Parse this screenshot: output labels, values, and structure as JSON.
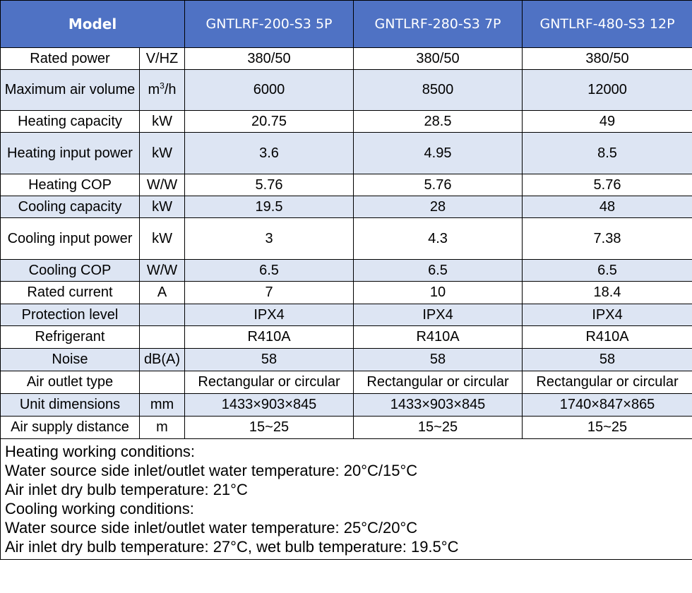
{
  "header": {
    "model_label": "Model",
    "models": [
      "GNTLRF-200-S3  5P",
      "GNTLRF-280-S3  7P",
      "GNTLRF-480-S3  12P"
    ]
  },
  "rows": [
    {
      "label": "Rated power",
      "unit": "V/HZ",
      "values": [
        "380/50",
        "380/50",
        "380/50"
      ]
    },
    {
      "label": "Maximum air volume",
      "unit": "m3/h",
      "values": [
        "6000",
        "8500",
        "12000"
      ]
    },
    {
      "label": "Heating capacity",
      "unit": "kW",
      "values": [
        "20.75",
        "28.5",
        "49"
      ]
    },
    {
      "label": "Heating input power",
      "unit": "kW",
      "values": [
        "3.6",
        "4.95",
        "8.5"
      ]
    },
    {
      "label": "Heating COP",
      "unit": "W/W",
      "values": [
        "5.76",
        "5.76",
        "5.76"
      ]
    },
    {
      "label": "Cooling capacity",
      "unit": "kW",
      "values": [
        "19.5",
        "28",
        "48"
      ]
    },
    {
      "label": "Cooling input power",
      "unit": "kW",
      "values": [
        "3",
        "4.3",
        "7.38"
      ]
    },
    {
      "label": "Cooling COP",
      "unit": "W/W",
      "values": [
        "6.5",
        "6.5",
        "6.5"
      ]
    },
    {
      "label": "Rated current",
      "unit": "A",
      "values": [
        "7",
        "10",
        "18.4"
      ]
    },
    {
      "label": "Protection level",
      "unit": "",
      "values": [
        "IPX4",
        "IPX4",
        "IPX4"
      ]
    },
    {
      "label": "Refrigerant",
      "unit": "",
      "values": [
        "R410A",
        "R410A",
        "R410A"
      ]
    },
    {
      "label": "Noise",
      "unit": "dB(A)",
      "values": [
        "58",
        "58",
        "58"
      ]
    },
    {
      "label": "Air outlet type",
      "unit": "",
      "values": [
        "Rectangular or circular",
        "Rectangular or circular",
        "Rectangular or circular"
      ]
    },
    {
      "label": "Unit dimensions",
      "unit": "mm",
      "values": [
        "1433×903×845",
        "1433×903×845",
        "1740×847×865"
      ]
    },
    {
      "label": "Air supply distance",
      "unit": "m",
      "values": [
        "15~25",
        "15~25",
        "15~25"
      ]
    }
  ],
  "notes": [
    "Heating working conditions:",
    "Water source side inlet/outlet water temperature: 20°C/15°C",
    "Air inlet dry bulb temperature: 21°C",
    "Cooling working conditions:",
    "Water source side inlet/outlet water temperature: 25°C/20°C",
    "Air inlet dry bulb temperature: 27°C, wet bulb temperature: 19.5°C"
  ],
  "colors": {
    "header_bg": "#4f72c4",
    "header_text": "#ffffff",
    "shaded_row_bg": "#dde5f3",
    "plain_row_bg": "#ffffff",
    "border": "#000000"
  }
}
